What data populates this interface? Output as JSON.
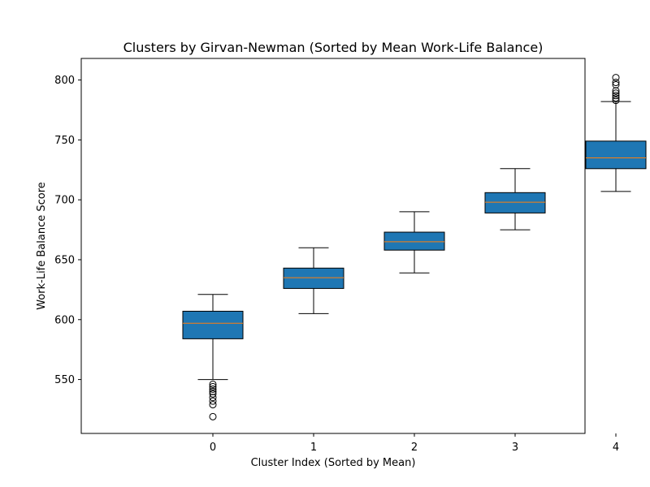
{
  "chart_data": {
    "type": "box",
    "title": "Clusters by Girvan-Newman (Sorted by Mean Work-Life Balance)",
    "xlabel": "Cluster Index (Sorted by Mean)",
    "ylabel": "Work-Life Balance Score",
    "categories": [
      "0",
      "1",
      "2",
      "3",
      "4"
    ],
    "ylim": [
      505,
      818
    ],
    "yticks": [
      550,
      600,
      650,
      700,
      750,
      800
    ],
    "grid": false,
    "box_color": "#1f77b4",
    "median_color": "#ff7f0e",
    "boxes": [
      {
        "category": "0",
        "whisker_low": 550,
        "q1": 584,
        "median": 597,
        "q3": 607,
        "whisker_high": 621,
        "outliers": [
          546,
          544,
          542,
          540,
          538,
          535,
          532,
          529,
          519
        ]
      },
      {
        "category": "1",
        "whisker_low": 605,
        "q1": 626,
        "median": 635,
        "q3": 643,
        "whisker_high": 660,
        "outliers": []
      },
      {
        "category": "2",
        "whisker_low": 639,
        "q1": 658,
        "median": 665,
        "q3": 673,
        "whisker_high": 690,
        "outliers": []
      },
      {
        "category": "3",
        "whisker_low": 675,
        "q1": 689,
        "median": 698,
        "q3": 706,
        "whisker_high": 726,
        "outliers": []
      },
      {
        "category": "4",
        "whisker_low": 707,
        "q1": 726,
        "median": 735,
        "q3": 749,
        "whisker_high": 782,
        "outliers": [
          783,
          785,
          787,
          789,
          791,
          796,
          798,
          802
        ]
      }
    ]
  }
}
